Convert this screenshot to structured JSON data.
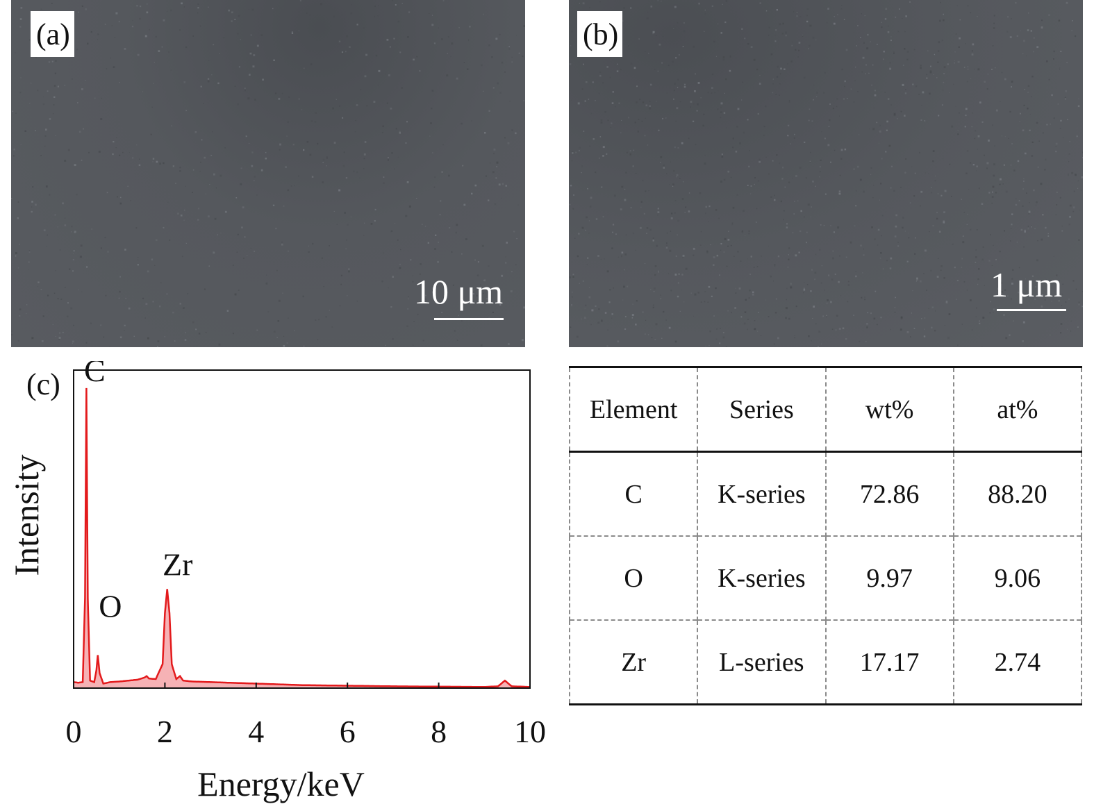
{
  "panels": {
    "a": {
      "label": "(a)",
      "scale_bar": "10 μm"
    },
    "b": {
      "label": "(b)",
      "scale_bar": "1 μm"
    },
    "c": {
      "label": "(c)"
    }
  },
  "chart_data": {
    "type": "line",
    "xlabel": "Energy/keV",
    "ylabel": "Intensity",
    "xlim": [
      0,
      10
    ],
    "xticks": [
      0,
      2,
      4,
      6,
      8,
      10
    ],
    "grid": false,
    "line_color": "#e31a1c",
    "fill_color": "#f4a5a8",
    "peaks": [
      {
        "name": "C",
        "energy": 0.28,
        "relative_intensity": 1.0
      },
      {
        "name": "O",
        "energy": 0.53,
        "relative_intensity": 0.11
      },
      {
        "name": "Zr",
        "energy": 2.05,
        "relative_intensity": 0.33
      }
    ],
    "series": [
      {
        "x": [
          0.0,
          0.1,
          0.2,
          0.25,
          0.28,
          0.31,
          0.36,
          0.45,
          0.5,
          0.53,
          0.57,
          0.65,
          0.8,
          1.0,
          1.2,
          1.4,
          1.55,
          1.6,
          1.65,
          1.8,
          1.95,
          2.0,
          2.05,
          2.1,
          2.15,
          2.25,
          2.33,
          2.4,
          2.6,
          3.0,
          4.0,
          5.0,
          6.0,
          7.0,
          8.0,
          9.0,
          9.3,
          9.45,
          9.6,
          10.0
        ],
        "y": [
          0.02,
          0.018,
          0.02,
          0.3,
          1.0,
          0.3,
          0.025,
          0.02,
          0.06,
          0.11,
          0.05,
          0.015,
          0.02,
          0.022,
          0.025,
          0.028,
          0.035,
          0.04,
          0.032,
          0.03,
          0.08,
          0.25,
          0.33,
          0.25,
          0.08,
          0.03,
          0.04,
          0.025,
          0.022,
          0.02,
          0.015,
          0.01,
          0.008,
          0.006,
          0.005,
          0.004,
          0.006,
          0.025,
          0.006,
          0.004
        ]
      }
    ]
  },
  "table": {
    "headers": [
      "Element",
      "Series",
      "wt%",
      "at%"
    ],
    "rows": [
      [
        "C",
        "K-series",
        "72.86",
        "88.20"
      ],
      [
        "O",
        "K-series",
        "9.97",
        "9.06"
      ],
      [
        "Zr",
        "L-series",
        "17.17",
        "2.74"
      ]
    ]
  }
}
